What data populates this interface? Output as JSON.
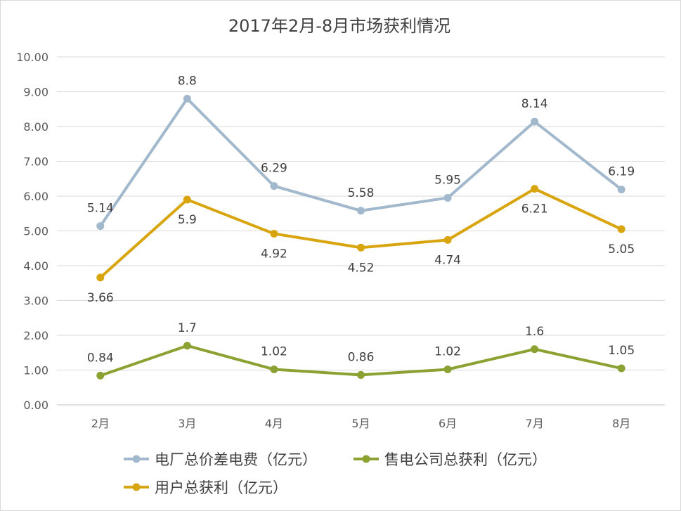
{
  "chart_data": {
    "type": "line",
    "title": "2017年2月-8月市场获利情况",
    "categories": [
      "2月",
      "3月",
      "4月",
      "5月",
      "6月",
      "7月",
      "8月"
    ],
    "ylim": [
      0,
      10
    ],
    "yticks": [
      "0.00",
      "1.00",
      "2.00",
      "3.00",
      "4.00",
      "5.00",
      "6.00",
      "7.00",
      "8.00",
      "9.00",
      "10.00"
    ],
    "grid": true,
    "legend_position": "bottom",
    "series": [
      {
        "name": "电厂总价差电费（亿元）",
        "color": "#a2b8cc",
        "values": [
          5.14,
          8.8,
          6.29,
          5.58,
          5.95,
          8.14,
          6.19
        ],
        "labels": [
          "5.14",
          "8.8",
          "6.29",
          "5.58",
          "5.95",
          "8.14",
          "6.19"
        ],
        "label_position": "above"
      },
      {
        "name": "售电公司总获利（亿元）",
        "color": "#8ba233",
        "values": [
          0.84,
          1.7,
          1.02,
          0.86,
          1.02,
          1.6,
          1.05
        ],
        "labels": [
          "0.84",
          "1.7",
          "1.02",
          "0.86",
          "1.02",
          "1.6",
          "1.05"
        ],
        "label_position": "above"
      },
      {
        "name": "用户总获利（亿元）",
        "color": "#d9a50f",
        "values": [
          3.66,
          5.9,
          4.92,
          4.52,
          4.74,
          6.21,
          5.05
        ],
        "labels": [
          "3.66",
          "5.9",
          "4.92",
          "4.52",
          "4.74",
          "6.21",
          "5.05"
        ],
        "label_position": "below"
      }
    ]
  }
}
